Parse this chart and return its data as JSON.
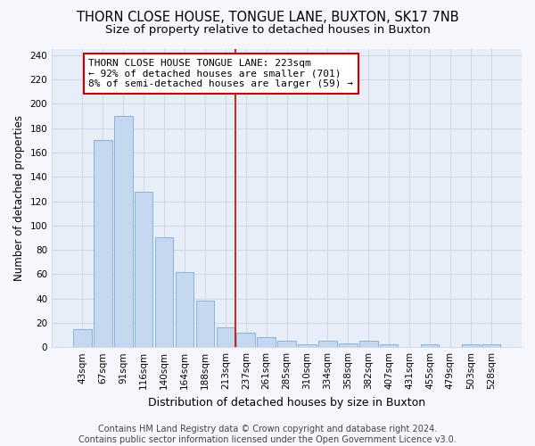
{
  "title": "THORN CLOSE HOUSE, TONGUE LANE, BUXTON, SK17 7NB",
  "subtitle": "Size of property relative to detached houses in Buxton",
  "xlabel": "Distribution of detached houses by size in Buxton",
  "ylabel": "Number of detached properties",
  "categories": [
    "43sqm",
    "67sqm",
    "91sqm",
    "116sqm",
    "140sqm",
    "164sqm",
    "188sqm",
    "213sqm",
    "237sqm",
    "261sqm",
    "285sqm",
    "310sqm",
    "334sqm",
    "358sqm",
    "382sqm",
    "407sqm",
    "431sqm",
    "455sqm",
    "479sqm",
    "503sqm",
    "528sqm"
  ],
  "values": [
    15,
    170,
    190,
    128,
    90,
    62,
    38,
    16,
    12,
    8,
    5,
    2,
    5,
    3,
    5,
    2,
    0,
    2,
    0,
    2,
    2
  ],
  "bar_color": "#c5d8f0",
  "bar_edge_color": "#7aadd4",
  "vline_color": "#cc0000",
  "vline_x_index": 7.5,
  "annotation_text": "THORN CLOSE HOUSE TONGUE LANE: 223sqm\n← 92% of detached houses are smaller (701)\n8% of semi-detached houses are larger (59) →",
  "annotation_box_color": "#ffffff",
  "annotation_box_edge_color": "#cc0000",
  "ylim": [
    0,
    245
  ],
  "yticks": [
    0,
    20,
    40,
    60,
    80,
    100,
    120,
    140,
    160,
    180,
    200,
    220,
    240
  ],
  "background_color": "#f5f7fc",
  "plot_bg_color": "#e8eef8",
  "grid_color": "#c8d4e8",
  "footer": "Contains HM Land Registry data © Crown copyright and database right 2024.\nContains public sector information licensed under the Open Government Licence v3.0.",
  "title_fontsize": 10.5,
  "subtitle_fontsize": 9.5,
  "xlabel_fontsize": 9,
  "ylabel_fontsize": 8.5,
  "tick_fontsize": 7.5,
  "footer_fontsize": 7,
  "ann_fontsize": 8
}
